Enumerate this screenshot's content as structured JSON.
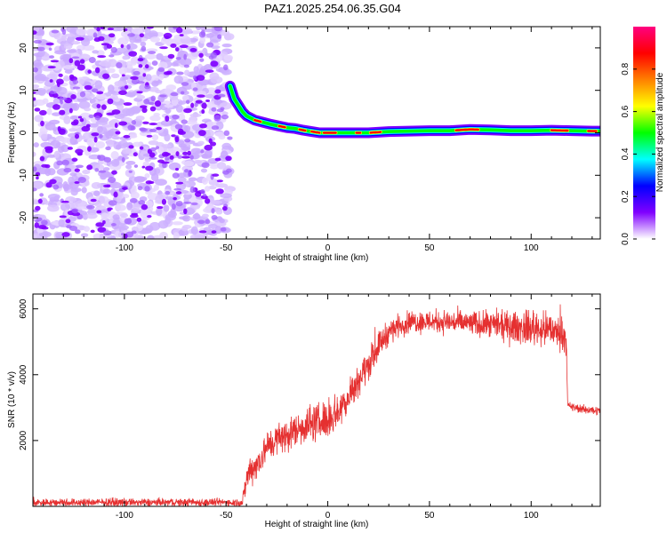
{
  "title": "PAZ1.2025.254.06.35.G04",
  "chart_data": [
    {
      "type": "heatmap",
      "xlabel": "Height of straight line (km)",
      "ylabel": "Frequency (Hz)",
      "xlim": [
        -145,
        134
      ],
      "ylim": [
        -25,
        25
      ],
      "xticks": [
        -100,
        -50,
        0,
        50,
        100
      ],
      "yticks": [
        -20,
        -10,
        0,
        10,
        20
      ],
      "colorbar": {
        "label": "Normalized spectral amplitude",
        "range": [
          0,
          1
        ],
        "ticks": [
          "0.0",
          "0.2",
          "0.4",
          "0.6",
          "0.8"
        ],
        "colormap": [
          "#ffffff",
          "#8000ff",
          "#0000ff",
          "#00ffff",
          "#00ff00",
          "#ffff00",
          "#ff8000",
          "#ff0000",
          "#ff0080"
        ]
      },
      "noise_region": {
        "x_range": [
          -145,
          -48
        ],
        "dominant_color": "#8000ff"
      },
      "signal_track": {
        "points": [
          [
            -48,
            11
          ],
          [
            -46,
            8
          ],
          [
            -44,
            6.5
          ],
          [
            -42,
            5
          ],
          [
            -40,
            4
          ],
          [
            -36,
            3
          ],
          [
            -32,
            2.5
          ],
          [
            -28,
            2
          ],
          [
            -24,
            1.6
          ],
          [
            -20,
            1.2
          ],
          [
            -16,
            1
          ],
          [
            -12,
            0.6
          ],
          [
            -8,
            0.3
          ],
          [
            -4,
            0
          ],
          [
            0,
            0
          ],
          [
            10,
            0
          ],
          [
            20,
            0
          ],
          [
            30,
            0.3
          ],
          [
            40,
            0.4
          ],
          [
            50,
            0.5
          ],
          [
            60,
            0.5
          ],
          [
            70,
            0.8
          ],
          [
            80,
            0.7
          ],
          [
            90,
            0.5
          ],
          [
            100,
            0.5
          ],
          [
            110,
            0.6
          ],
          [
            120,
            0.5
          ],
          [
            130,
            0.4
          ],
          [
            134,
            0.4
          ]
        ],
        "peak_segments_x": [
          [
            -36,
            -33
          ],
          [
            -24,
            -21
          ],
          [
            -14,
            -11
          ],
          [
            -8,
            -4
          ],
          [
            -2,
            4
          ],
          [
            14,
            16
          ],
          [
            21,
            26
          ],
          [
            63,
            74
          ],
          [
            110,
            118
          ],
          [
            128,
            132
          ]
        ]
      }
    },
    {
      "type": "line",
      "xlabel": "Height of straight line (km)",
      "ylabel": "SNR (10 * v/v)",
      "xlim": [
        -145,
        134
      ],
      "ylim": [
        0,
        6450
      ],
      "xticks": [
        -100,
        -50,
        0,
        50,
        100
      ],
      "yticks": [
        2000,
        4000,
        6000
      ],
      "series": [
        {
          "name": "SNR",
          "color": "#e53030",
          "profile": [
            [
              -145,
              120
            ],
            [
              -42,
              120
            ],
            [
              -40,
              800
            ],
            [
              -38,
              1150
            ],
            [
              -35,
              1250
            ],
            [
              -30,
              1800
            ],
            [
              -25,
              2050
            ],
            [
              -20,
              2150
            ],
            [
              -15,
              2350
            ],
            [
              -10,
              2500
            ],
            [
              -5,
              2550
            ],
            [
              0,
              2650
            ],
            [
              5,
              2900
            ],
            [
              10,
              3300
            ],
            [
              15,
              3850
            ],
            [
              20,
              4300
            ],
            [
              25,
              4900
            ],
            [
              30,
              5300
            ],
            [
              35,
              5500
            ],
            [
              40,
              5600
            ],
            [
              50,
              5620
            ],
            [
              60,
              5600
            ],
            [
              70,
              5560
            ],
            [
              80,
              5500
            ],
            [
              90,
              5450
            ],
            [
              100,
              5420
            ],
            [
              110,
              5350
            ],
            [
              117,
              5200
            ],
            [
              118,
              3050
            ],
            [
              125,
              2950
            ],
            [
              134,
              2900
            ]
          ],
          "noise_amplitude": [
            [
              -145,
              90
            ],
            [
              -42,
              90
            ],
            [
              -40,
              350
            ],
            [
              -20,
              380
            ],
            [
              0,
              450
            ],
            [
              20,
              350
            ],
            [
              35,
              250
            ],
            [
              80,
              300
            ],
            [
              100,
              400
            ],
            [
              117,
              350
            ],
            [
              118,
              100
            ],
            [
              134,
              100
            ]
          ]
        }
      ]
    }
  ]
}
